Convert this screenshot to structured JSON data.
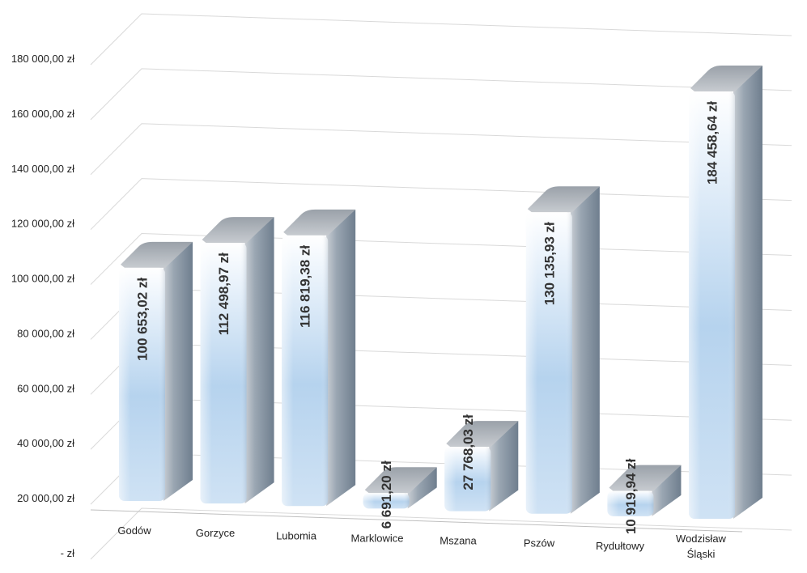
{
  "chart_data": {
    "type": "bar",
    "title": "",
    "xlabel": "",
    "ylabel": "",
    "categories": [
      "Godów",
      "Gorzyce",
      "Lubomia",
      "Marklowice",
      "Mszana",
      "Pszów",
      "Rydułtowy",
      "Wodzisław Śląski"
    ],
    "category_lines": [
      [
        "Godów"
      ],
      [
        "Gorzyce"
      ],
      [
        "Lubomia"
      ],
      [
        "Marklowice"
      ],
      [
        "Mszana"
      ],
      [
        "Pszów"
      ],
      [
        "Rydułtowy"
      ],
      [
        "Wodzisław",
        "Śląski"
      ]
    ],
    "values": [
      100653.02,
      112498.97,
      116819.38,
      6691.2,
      27768.03,
      130135.93,
      10919.94,
      184458.64
    ],
    "value_labels": [
      "100 653,02 zł",
      "112 498,97 zł",
      "116 819,38 zł",
      "6 691,20 zł",
      "27 768,03 zł",
      "130 135,93 zł",
      "10 919,94 zł",
      "184 458,64 zł"
    ],
    "ylim": [
      0,
      180000
    ],
    "yticks": [
      0,
      20000,
      40000,
      60000,
      80000,
      100000,
      120000,
      140000,
      160000,
      180000
    ],
    "ytick_labels": [
      "-  zł",
      "20 000,00 zł",
      "40 000,00 zł",
      "60 000,00 zł",
      "80 000,00 zł",
      "100 000,00 zł",
      "120 000,00 zł",
      "140 000,00 zł",
      "160 000,00 zł",
      "180 000,00 zł"
    ],
    "grid": true,
    "style": "3d-cylinder-bars",
    "colors": {
      "front_bottom": "#c6dcf1",
      "front_mid": "#b4d2ee",
      "front_top": "#ffffff",
      "side": "#8a98a7",
      "top": "#b9bdc3",
      "grid": "#d9d9d9",
      "axis": "#bfbfbf"
    }
  }
}
